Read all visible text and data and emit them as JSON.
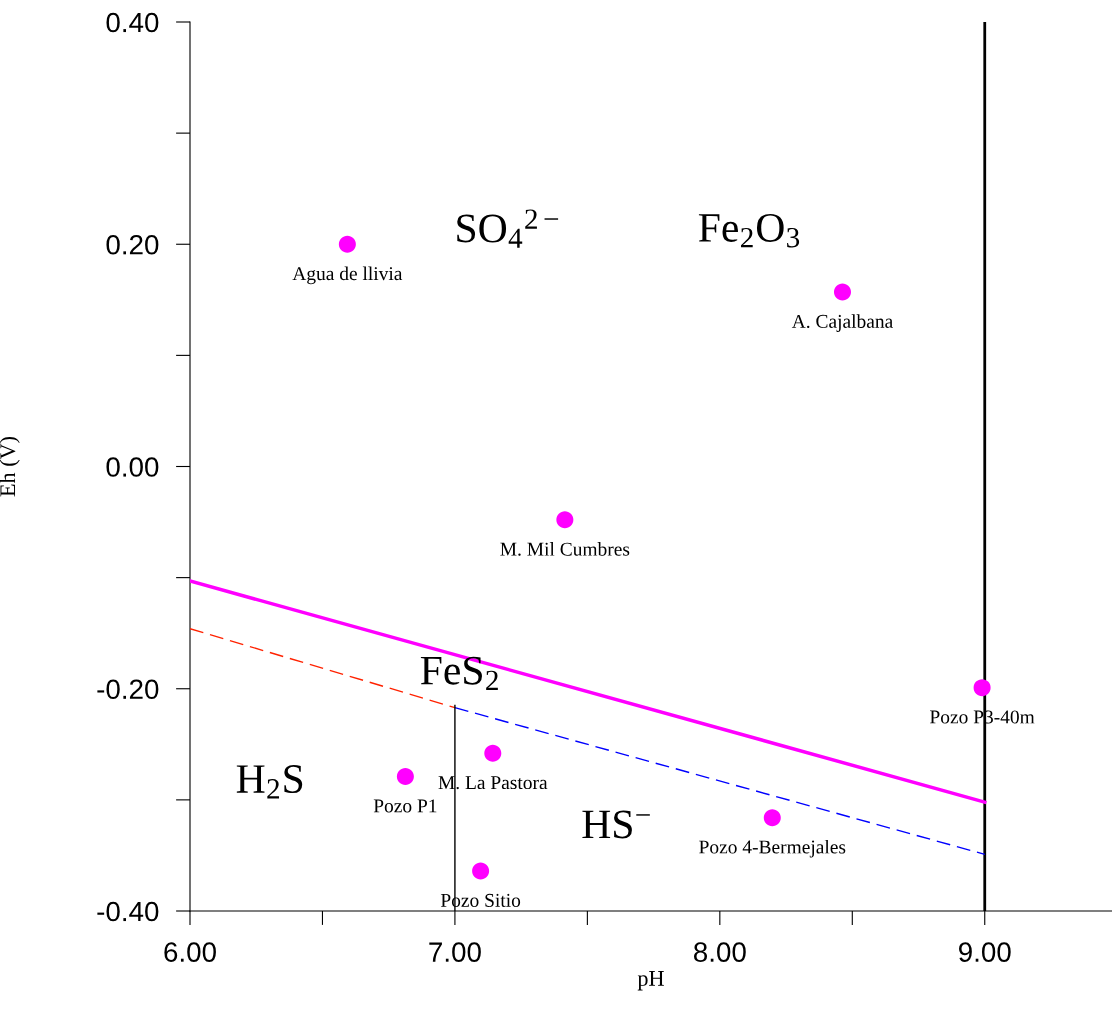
{
  "chart_data": {
    "type": "scatter",
    "xlabel": "pH",
    "ylabel": "Eh (V)",
    "xlim": [
      6.0,
      9.48
    ],
    "ylim": [
      -0.4,
      0.4
    ],
    "xticks": [
      "6.00",
      {
        "value": 6.5,
        "label": null
      },
      {
        "value": 7.0,
        "label": "7.00"
      },
      {
        "value": 7.5,
        "label": null
      },
      {
        "value": 8.0,
        "label": "8.00"
      },
      {
        "value": 8.5,
        "label": null
      },
      {
        "value": 9.0,
        "label": "9.00"
      }
    ],
    "yticks": [
      {
        "value": -0.4,
        "label": "-0.40"
      },
      {
        "value": -0.3,
        "label": null
      },
      {
        "value": -0.2,
        "label": "-0.20"
      },
      {
        "value": -0.1,
        "label": null
      },
      {
        "value": 0.0,
        "label": "0.00"
      },
      {
        "value": 0.1,
        "label": null
      },
      {
        "value": 0.2,
        "label": "0.20"
      },
      {
        "value": 0.3,
        "label": null
      },
      {
        "value": 0.4,
        "label": "0.40"
      }
    ],
    "grid": false,
    "legend": false,
    "series": [
      {
        "marker": "circle",
        "color": "#ff00ff",
        "x": [
          6.594,
          8.463,
          7.415,
          8.99,
          7.143,
          6.813,
          8.198,
          7.097
        ],
        "values": [
          0.2,
          0.157,
          -0.048,
          -0.199,
          -0.258,
          -0.279,
          -0.316,
          -0.364
        ]
      },
      {
        "type": "line",
        "color": "#ff00ff",
        "line_style": "solid",
        "x": [
          6.0,
          9.0
        ],
        "values": [
          -0.103,
          -0.302
        ]
      },
      {
        "type": "line",
        "color": "#ff2200",
        "line_style": "dashed",
        "x": [
          6.0,
          7.0
        ],
        "values": [
          -0.146,
          -0.217
        ]
      },
      {
        "type": "line",
        "color": "#0000ff",
        "line_style": "dashed",
        "x": [
          7.0,
          9.0
        ],
        "values": [
          -0.217,
          -0.349
        ]
      },
      {
        "type": "line",
        "color": "#000000",
        "line_style": "solid",
        "x": [
          7.0,
          7.0
        ],
        "values": [
          -0.215,
          -0.4
        ]
      }
    ],
    "ref_lines": [
      {
        "axis": "x",
        "value": 9.0,
        "label": null,
        "color": "#000000",
        "line_style": "solid"
      }
    ],
    "annotations": [
      {
        "text": "Agua de llivia",
        "x": 6.594,
        "y": 0.2
      },
      {
        "text": "A. Cajalbana",
        "x": 8.463,
        "y": 0.157
      },
      {
        "text": "M. Mil Cumbres",
        "x": 7.415,
        "y": -0.048
      },
      {
        "text": "Pozo P3-40m",
        "x": 8.99,
        "y": -0.199
      },
      {
        "text": "M. La Pastora",
        "x": 7.143,
        "y": -0.258
      },
      {
        "text": "Pozo P1",
        "x": 6.813,
        "y": -0.279
      },
      {
        "text": "Pozo 4-Bermejales",
        "x": 8.198,
        "y": -0.316
      },
      {
        "text": "Pozo Sitio",
        "x": 7.097,
        "y": -0.364
      },
      "SO$_{4}$$^{2−}$",
      "Fe$_{2}$O$_{3}$",
      "FeS$_{2}$",
      "H$_{2}$S",
      "HS$^{−}$"
    ]
  }
}
